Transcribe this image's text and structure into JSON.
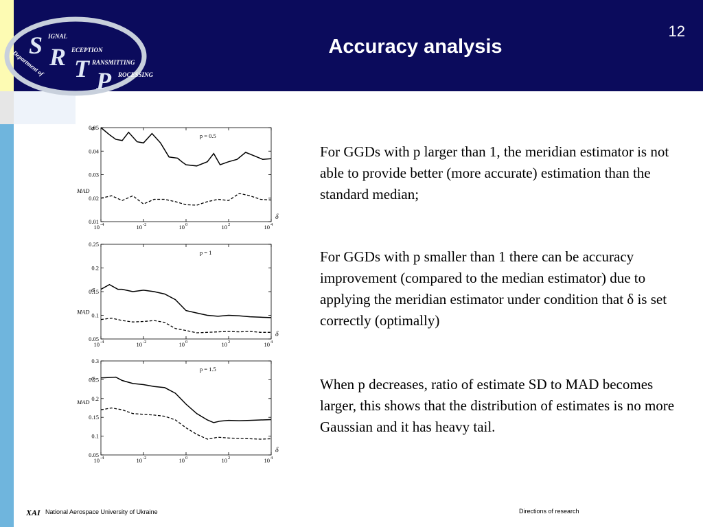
{
  "slide": {
    "page_number": "12",
    "title": "Accuracy analysis",
    "logo_letters": {
      "s": "S",
      "r": "R",
      "t": "T",
      "p": "P"
    },
    "logo_words": {
      "signal": "IGNAL",
      "reception": "ECEPTION",
      "transmitting": "RANSMITTING",
      "processing": "ROCESSING"
    },
    "logo_arc_text": "Department of",
    "paragraphs": [
      "For GGDs with p larger than 1, the meridian estimator is not able to provide better (more accurate) estimation than the standard median;",
      "For GGDs with p smaller than 1 there can be accuracy improvement (compared to the median estimator) due to applying the meridian estimator under condition that δ is set correctly (optimally)",
      "When p decreases, ratio of estimate SD to MAD becomes larger, this shows that the distribution of estimates is no more Gaussian and it has heavy tail."
    ],
    "footer": {
      "university_logo_text": "ХАІ",
      "university": "National Aerospace University of Ukraine",
      "section": "Directions of research"
    }
  },
  "colors": {
    "header_background": "#0b0b5c",
    "stripe_yellow": "#fdfbb3",
    "stripe_blue": "#6fb5dd",
    "line_color": "#000000"
  },
  "chart_data": [
    {
      "type": "line",
      "log_x": true,
      "xlim": [
        -4,
        4
      ],
      "ylim": [
        0.01,
        0.05
      ],
      "yticks": [
        "0.01",
        "0.02",
        "0.03",
        "0.04",
        "0.05"
      ],
      "xtick_exponents": [
        "-4",
        "-2",
        "0",
        "2",
        "4"
      ],
      "annotation": "p = 0.5",
      "xlabel": "δ",
      "series": [
        {
          "name": "σ",
          "style": "solid",
          "x": [
            -4,
            -3.6,
            -3.3,
            -3,
            -2.7,
            -2.3,
            -2,
            -1.6,
            -1.2,
            -0.8,
            -0.4,
            -0.2,
            0,
            0.5,
            1,
            1.3,
            1.6,
            2,
            2.4,
            2.8,
            3.2,
            3.6,
            4
          ],
          "y": [
            0.05,
            0.047,
            0.045,
            0.0445,
            0.048,
            0.044,
            0.0435,
            0.0475,
            0.0435,
            0.0375,
            0.037,
            0.0355,
            0.0342,
            0.0337,
            0.0355,
            0.039,
            0.0342,
            0.0355,
            0.0365,
            0.0395,
            0.038,
            0.0365,
            0.0368
          ]
        },
        {
          "name": "MAD",
          "style": "dashed",
          "x": [
            -4,
            -3.5,
            -3,
            -2.5,
            -2,
            -1.5,
            -1,
            -0.5,
            0,
            0.5,
            1,
            1.5,
            2,
            2.5,
            3,
            3.5,
            4
          ],
          "y": [
            0.02,
            0.021,
            0.019,
            0.021,
            0.0175,
            0.0195,
            0.0195,
            0.0185,
            0.0172,
            0.017,
            0.0185,
            0.0195,
            0.019,
            0.022,
            0.021,
            0.0195,
            0.0192
          ]
        }
      ]
    },
    {
      "type": "line",
      "log_x": true,
      "xlim": [
        -4,
        4
      ],
      "ylim": [
        0.05,
        0.25
      ],
      "yticks": [
        "0.05",
        "0.1",
        "0.15",
        "0.2",
        "0.25"
      ],
      "xtick_exponents": [
        "-4",
        "-2",
        "0",
        "2",
        "4"
      ],
      "annotation": "p = 1",
      "xlabel": "δ",
      "series": [
        {
          "name": "σ",
          "style": "solid",
          "x": [
            -4,
            -3.6,
            -3.2,
            -3,
            -2.5,
            -2,
            -1.5,
            -1,
            -0.5,
            0,
            0.5,
            1,
            1.5,
            2,
            2.5,
            3,
            3.5,
            4
          ],
          "y": [
            0.155,
            0.165,
            0.155,
            0.155,
            0.15,
            0.153,
            0.15,
            0.145,
            0.133,
            0.11,
            0.105,
            0.1,
            0.098,
            0.1,
            0.099,
            0.097,
            0.096,
            0.095
          ]
        },
        {
          "name": "MAD",
          "style": "dashed",
          "x": [
            -4,
            -3.5,
            -3,
            -2.5,
            -2,
            -1.5,
            -1,
            -0.5,
            0,
            0.5,
            1,
            1.5,
            2,
            2.5,
            3,
            3.5,
            4
          ],
          "y": [
            0.091,
            0.094,
            0.089,
            0.086,
            0.087,
            0.089,
            0.085,
            0.072,
            0.068,
            0.063,
            0.064,
            0.065,
            0.066,
            0.065,
            0.066,
            0.064,
            0.064
          ]
        }
      ]
    },
    {
      "type": "line",
      "log_x": true,
      "xlim": [
        -4,
        4
      ],
      "ylim": [
        0.05,
        0.3
      ],
      "yticks": [
        "0.05",
        "0.1",
        "0.15",
        "0.2",
        "0.25",
        "0.3"
      ],
      "xtick_exponents": [
        "-4",
        "-2",
        "0",
        "2",
        "4"
      ],
      "annotation": "p = 1.5",
      "xlabel": "δ",
      "series": [
        {
          "name": "σ",
          "style": "solid",
          "x": [
            -4,
            -3.3,
            -3,
            -2.5,
            -2,
            -1.5,
            -1,
            -0.5,
            0,
            0.5,
            1,
            1.3,
            1.6,
            2,
            2.5,
            3,
            3.5,
            4
          ],
          "y": [
            0.255,
            0.257,
            0.248,
            0.24,
            0.237,
            0.232,
            0.229,
            0.214,
            0.185,
            0.16,
            0.143,
            0.136,
            0.14,
            0.142,
            0.141,
            0.142,
            0.143,
            0.144
          ]
        },
        {
          "name": "MAD",
          "style": "dashed",
          "x": [
            -4,
            -3.5,
            -3,
            -2.5,
            -2,
            -1.5,
            -1,
            -0.5,
            0,
            0.5,
            1,
            1.5,
            2,
            2.5,
            3,
            3.5,
            4
          ],
          "y": [
            0.17,
            0.175,
            0.17,
            0.16,
            0.158,
            0.156,
            0.153,
            0.143,
            0.122,
            0.105,
            0.092,
            0.097,
            0.095,
            0.094,
            0.093,
            0.092,
            0.093
          ]
        }
      ]
    }
  ]
}
